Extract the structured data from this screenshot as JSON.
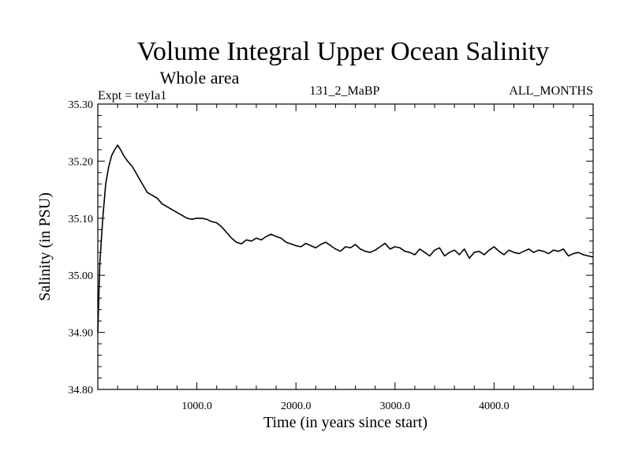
{
  "chart_data": {
    "type": "line",
    "title": "Volume Integral Upper Ocean Salinity",
    "subtitle": "Whole area",
    "expt_label": "Expt = teyIa1",
    "run_label": "131_2_MaBP",
    "months_label": "ALL_MONTHS",
    "xlabel": "Time (in years since start)",
    "ylabel": "Salinity (in PSU)",
    "xlim": [
      0,
      5000
    ],
    "ylim": [
      34.8,
      35.3
    ],
    "xticks": [
      1000,
      2000,
      3000,
      4000
    ],
    "xtick_labels": [
      "1000.0",
      "2000.0",
      "3000.0",
      "4000.0"
    ],
    "yticks": [
      34.8,
      34.9,
      35.0,
      35.1,
      35.2,
      35.3
    ],
    "ytick_labels": [
      "34.80",
      "34.90",
      "35.00",
      "35.10",
      "35.20",
      "35.30"
    ],
    "series": [
      {
        "name": "Salinity",
        "color": "#000000",
        "x": [
          0,
          20,
          50,
          80,
          110,
          140,
          170,
          200,
          230,
          260,
          300,
          350,
          400,
          450,
          500,
          550,
          600,
          650,
          700,
          750,
          800,
          850,
          900,
          950,
          1000,
          1050,
          1100,
          1150,
          1200,
          1250,
          1300,
          1350,
          1400,
          1450,
          1500,
          1550,
          1600,
          1650,
          1700,
          1750,
          1800,
          1850,
          1900,
          1950,
          2000,
          2050,
          2100,
          2150,
          2200,
          2250,
          2300,
          2350,
          2400,
          2450,
          2500,
          2550,
          2600,
          2650,
          2700,
          2750,
          2800,
          2850,
          2900,
          2950,
          3000,
          3050,
          3100,
          3150,
          3200,
          3250,
          3300,
          3350,
          3400,
          3450,
          3500,
          3550,
          3600,
          3650,
          3700,
          3750,
          3800,
          3850,
          3900,
          3950,
          4000,
          4050,
          4100,
          4150,
          4200,
          4250,
          4300,
          4350,
          4400,
          4450,
          4500,
          4550,
          4600,
          4650,
          4700,
          4750,
          4800,
          4850,
          4900,
          4950,
          5000
        ],
        "values": [
          34.9,
          35.02,
          35.1,
          35.16,
          35.19,
          35.21,
          35.22,
          35.228,
          35.22,
          35.21,
          35.2,
          35.19,
          35.175,
          35.16,
          35.145,
          35.14,
          35.135,
          35.125,
          35.12,
          35.115,
          35.11,
          35.105,
          35.1,
          35.098,
          35.1,
          35.1,
          35.098,
          35.094,
          35.092,
          35.085,
          35.075,
          35.065,
          35.058,
          35.055,
          35.062,
          35.06,
          35.065,
          35.062,
          35.068,
          35.072,
          35.068,
          35.065,
          35.058,
          35.055,
          35.052,
          35.05,
          35.056,
          35.052,
          35.048,
          35.054,
          35.058,
          35.052,
          35.046,
          35.042,
          35.05,
          35.048,
          35.054,
          35.046,
          35.042,
          35.04,
          35.044,
          35.05,
          35.056,
          35.046,
          35.05,
          35.048,
          35.042,
          35.04,
          35.036,
          35.046,
          35.04,
          35.034,
          35.044,
          35.048,
          35.034,
          35.04,
          35.044,
          35.036,
          35.046,
          35.03,
          35.04,
          35.042,
          35.036,
          35.044,
          35.05,
          35.042,
          35.036,
          35.044,
          35.04,
          35.038,
          35.042,
          35.046,
          35.04,
          35.044,
          35.042,
          35.038,
          35.044,
          35.042,
          35.046,
          35.034,
          35.038,
          35.04,
          35.036,
          35.034,
          35.032
        ]
      }
    ]
  }
}
